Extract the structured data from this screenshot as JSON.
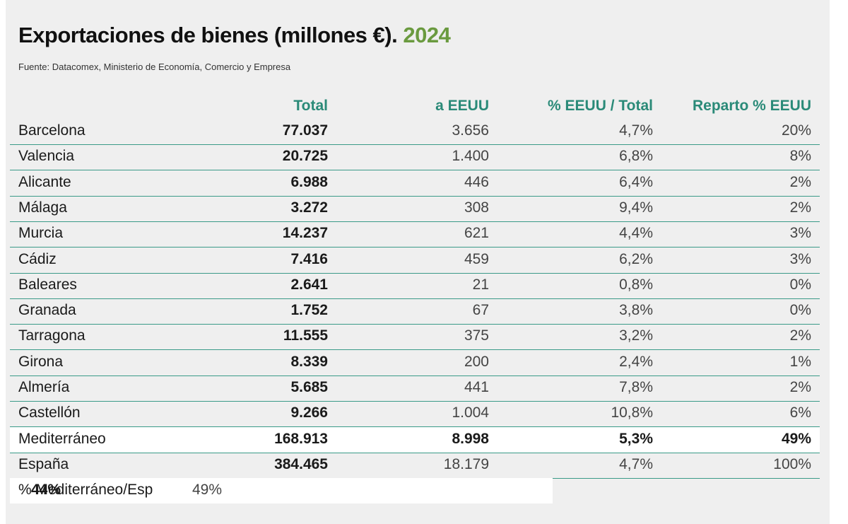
{
  "title": "Exportaciones de bienes (millones €).",
  "year": "2024",
  "source": "Fuente: Datacomex, Ministerio de Economía, Comercio y Empresa",
  "colors": {
    "accent": "#2a8a78",
    "year": "#6a9a3f",
    "rule": "#3a9a88",
    "panel": "#efefef"
  },
  "chart_data": {
    "type": "table",
    "title": "Exportaciones de bienes (millones €). 2024",
    "columns": [
      "",
      "Total",
      "a EEUU",
      "% EEUU / Total",
      "Reparto % EEUU"
    ],
    "rows": [
      [
        "Barcelona",
        "77.037",
        "3.656",
        "4,7%",
        "20%"
      ],
      [
        "Valencia",
        "20.725",
        "1.400",
        "6,8%",
        "8%"
      ],
      [
        "Alicante",
        "6.988",
        "446",
        "6,4%",
        "2%"
      ],
      [
        "Málaga",
        "3.272",
        "308",
        "9,4%",
        "2%"
      ],
      [
        "Murcia",
        "14.237",
        "621",
        "4,4%",
        "3%"
      ],
      [
        "Cádiz",
        "7.416",
        "459",
        "6,2%",
        "3%"
      ],
      [
        "Baleares",
        "2.641",
        "21",
        "0,8%",
        "0%"
      ],
      [
        "Granada",
        "1.752",
        "67",
        "3,8%",
        "0%"
      ],
      [
        "Tarragona",
        "11.555",
        "375",
        "3,2%",
        "2%"
      ],
      [
        "Girona",
        "8.339",
        "200",
        "2,4%",
        "1%"
      ],
      [
        "Almería",
        "5.685",
        "441",
        "7,8%",
        "2%"
      ],
      [
        "Castellón",
        "9.266",
        "1.004",
        "10,8%",
        "6%"
      ],
      [
        "Mediterráneo",
        "168.913",
        "8.998",
        "5,3%",
        "49%"
      ],
      [
        "España",
        "384.465",
        "18.179",
        "4,7%",
        "100%"
      ],
      [
        "% Mediterráneo/Esp",
        "44%",
        "49%",
        "",
        ""
      ]
    ]
  }
}
